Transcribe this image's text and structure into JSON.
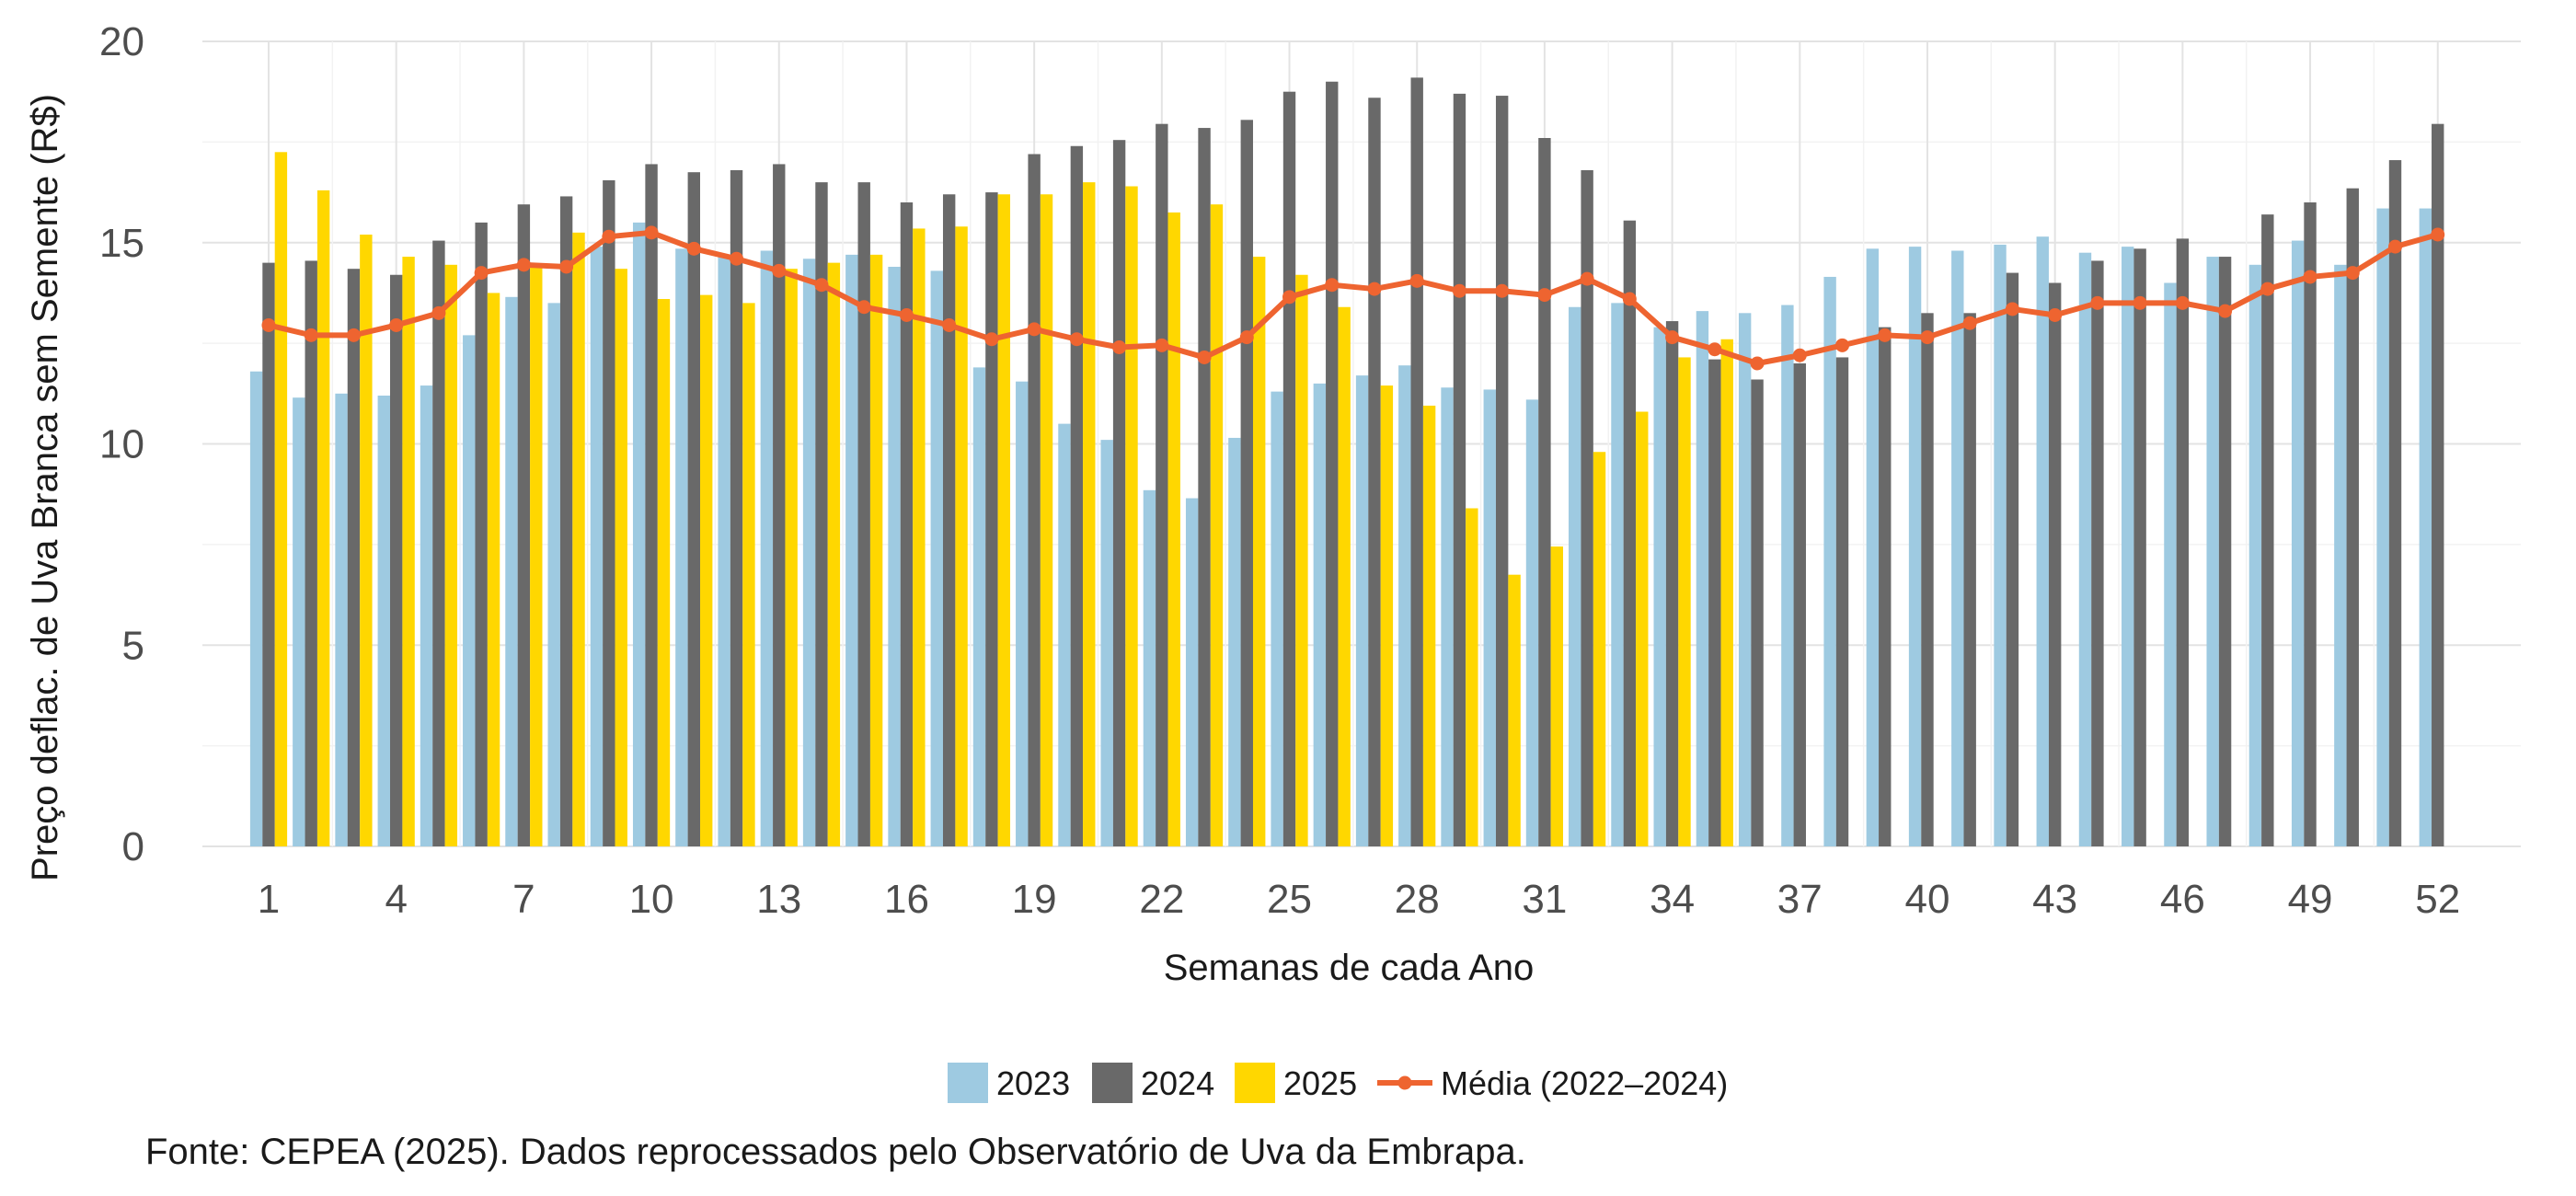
{
  "chart_data": {
    "type": "bar",
    "xlabel": "Semanas de cada Ano",
    "ylabel": "Preço deflac. de Uva Branca sem Semente (R$)",
    "ylim": [
      0,
      20
    ],
    "yticks": [
      "0",
      "5",
      "10",
      "15",
      "20"
    ],
    "xticks": [
      "1",
      "4",
      "7",
      "10",
      "13",
      "16",
      "19",
      "22",
      "25",
      "28",
      "31",
      "34",
      "37",
      "40",
      "43",
      "46",
      "49",
      "52"
    ],
    "grid": true,
    "legend_position": "bottom",
    "weeks": [
      1,
      2,
      3,
      4,
      5,
      6,
      7,
      8,
      9,
      10,
      11,
      12,
      13,
      14,
      15,
      16,
      17,
      18,
      19,
      20,
      21,
      22,
      23,
      24,
      25,
      26,
      27,
      28,
      29,
      30,
      31,
      32,
      33,
      34,
      35,
      36,
      37,
      38,
      39,
      40,
      41,
      42,
      43,
      44,
      45,
      46,
      47,
      48,
      49,
      50,
      51,
      52
    ],
    "series": [
      {
        "name": "2023",
        "type": "bar",
        "color": "#9ecae1",
        "values": [
          11.8,
          11.15,
          11.25,
          11.2,
          11.45,
          12.7,
          13.65,
          13.5,
          14.9,
          15.5,
          14.85,
          14.7,
          14.8,
          14.6,
          14.7,
          14.4,
          14.3,
          11.9,
          11.55,
          10.5,
          10.1,
          8.85,
          8.65,
          10.15,
          11.3,
          11.5,
          11.7,
          11.95,
          11.4,
          11.35,
          11.1,
          13.4,
          13.5,
          12.9,
          13.3,
          13.25,
          13.45,
          14.15,
          14.85,
          14.9,
          14.8,
          14.95,
          15.15,
          14.75,
          14.9,
          14.0,
          14.65,
          14.45,
          15.05,
          14.45,
          15.85,
          15.85
        ]
      },
      {
        "name": "2024",
        "type": "bar",
        "color": "#696969",
        "values": [
          14.5,
          14.55,
          14.35,
          14.2,
          15.05,
          15.5,
          15.95,
          16.15,
          16.55,
          16.95,
          16.75,
          16.8,
          16.95,
          16.5,
          16.5,
          16.0,
          16.2,
          16.25,
          17.2,
          17.4,
          17.55,
          17.95,
          17.85,
          18.05,
          18.75,
          19.0,
          18.6,
          19.1,
          18.7,
          18.65,
          17.6,
          16.8,
          15.55,
          13.05,
          12.1,
          11.6,
          12.0,
          12.15,
          12.9,
          13.25,
          13.25,
          14.25,
          14.0,
          14.55,
          14.85,
          15.1,
          14.65,
          15.7,
          16.0,
          16.35,
          17.05,
          17.95
        ]
      },
      {
        "name": "2025",
        "type": "bar",
        "color": "#ffd700",
        "values": [
          17.25,
          16.3,
          15.2,
          14.65,
          14.45,
          13.75,
          14.4,
          15.25,
          14.35,
          13.6,
          13.7,
          13.5,
          14.35,
          14.5,
          14.7,
          15.35,
          15.4,
          16.2,
          16.2,
          16.5,
          16.4,
          15.75,
          15.95,
          14.65,
          14.2,
          13.4,
          11.45,
          10.95,
          8.4,
          6.75,
          7.45,
          9.8,
          10.8,
          12.15,
          12.6
        ]
      },
      {
        "name": "Média (2022–2024)",
        "type": "line",
        "color": "#ee6430",
        "values": [
          12.95,
          12.7,
          12.7,
          12.95,
          13.25,
          14.25,
          14.45,
          14.4,
          15.15,
          15.25,
          14.85,
          14.6,
          14.3,
          13.95,
          13.4,
          13.2,
          12.95,
          12.6,
          12.85,
          12.6,
          12.4,
          12.45,
          12.15,
          12.65,
          13.65,
          13.95,
          13.85,
          14.05,
          13.8,
          13.8,
          13.7,
          14.1,
          13.6,
          12.65,
          12.35,
          12.0,
          12.2,
          12.45,
          12.7,
          12.65,
          13.0,
          13.35,
          13.2,
          13.5,
          13.5,
          13.5,
          13.3,
          13.85,
          14.15,
          14.25,
          14.9,
          15.2
        ]
      }
    ]
  },
  "caption": "Fonte: CEPEA (2025). Dados reprocessados pelo Observatório de Uva da Embrapa."
}
